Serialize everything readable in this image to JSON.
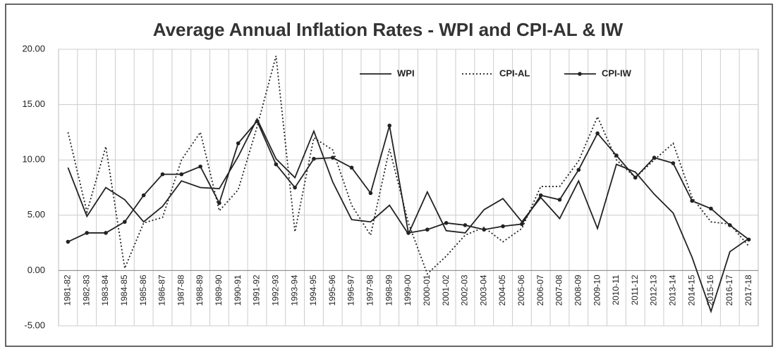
{
  "chart_data": {
    "type": "line",
    "title": "Average Annual Inflation Rates - WPI and CPI-AL & IW",
    "categories": [
      "1981-82",
      "1982-83",
      "1983-84",
      "1984-85",
      "1985-86",
      "1986-87",
      "1987-88",
      "1988-89",
      "1989-90",
      "1990-91",
      "1991-92",
      "1992-93",
      "1993-94",
      "1994-95",
      "1995-96",
      "1996-97",
      "1997-98",
      "1998-99",
      "1999-00",
      "2000-01",
      "2001-02",
      "2002-03",
      "2003-04",
      "2004-05",
      "2005-06",
      "2006-07",
      "2007-08",
      "2008-09",
      "2009-10",
      "2010-11",
      "2011-12",
      "2012-13",
      "2013-14",
      "2014-15",
      "2015-16",
      "2016-17",
      "2017-18"
    ],
    "series": [
      {
        "name": "WPI",
        "color": "#222222",
        "line_style": "solid",
        "markers": false,
        "values": [
          9.3,
          4.9,
          7.5,
          6.4,
          4.4,
          5.8,
          8.1,
          7.5,
          7.4,
          10.3,
          13.7,
          10.1,
          8.4,
          12.6,
          8.0,
          4.6,
          4.4,
          5.9,
          3.3,
          7.1,
          3.6,
          3.4,
          5.5,
          6.5,
          4.4,
          6.6,
          4.7,
          8.1,
          3.8,
          9.6,
          8.9,
          6.9,
          5.2,
          1.2,
          -3.7,
          1.7,
          2.9
        ]
      },
      {
        "name": "CPI-AL",
        "color": "#222222",
        "line_style": "dotted",
        "markers": false,
        "values": [
          12.5,
          5.3,
          11.2,
          0.2,
          4.3,
          4.8,
          10.0,
          12.5,
          5.4,
          7.3,
          13.0,
          19.4,
          3.5,
          12.0,
          10.9,
          5.9,
          3.2,
          11.0,
          4.3,
          -0.3,
          1.3,
          3.2,
          3.9,
          2.6,
          3.8,
          7.6,
          7.6,
          9.9,
          13.9,
          10.0,
          8.4,
          10.0,
          11.5,
          6.6,
          4.4,
          4.2,
          2.2
        ]
      },
      {
        "name": "CPI-IW",
        "color": "#222222",
        "line_style": "solid",
        "markers": true,
        "values": [
          2.6,
          3.4,
          3.4,
          4.4,
          6.8,
          8.7,
          8.7,
          9.4,
          6.1,
          11.5,
          13.5,
          9.6,
          7.5,
          10.1,
          10.2,
          9.3,
          7.0,
          13.1,
          3.4,
          3.7,
          4.3,
          4.1,
          3.7,
          4.0,
          4.2,
          6.8,
          6.4,
          9.1,
          12.4,
          10.4,
          8.4,
          10.2,
          9.7,
          6.3,
          5.6,
          4.1,
          2.8
        ]
      }
    ],
    "ylim": [
      -5,
      20
    ],
    "yticks": [
      {
        "value": -5,
        "label": "-5.00"
      },
      {
        "value": 0,
        "label": "0.00"
      },
      {
        "value": 5,
        "label": "5.00"
      },
      {
        "value": 10,
        "label": "10.00"
      },
      {
        "value": 15,
        "label": "15.00"
      },
      {
        "value": 20,
        "label": "20.00"
      }
    ],
    "grid": true,
    "legend": "top-right"
  }
}
